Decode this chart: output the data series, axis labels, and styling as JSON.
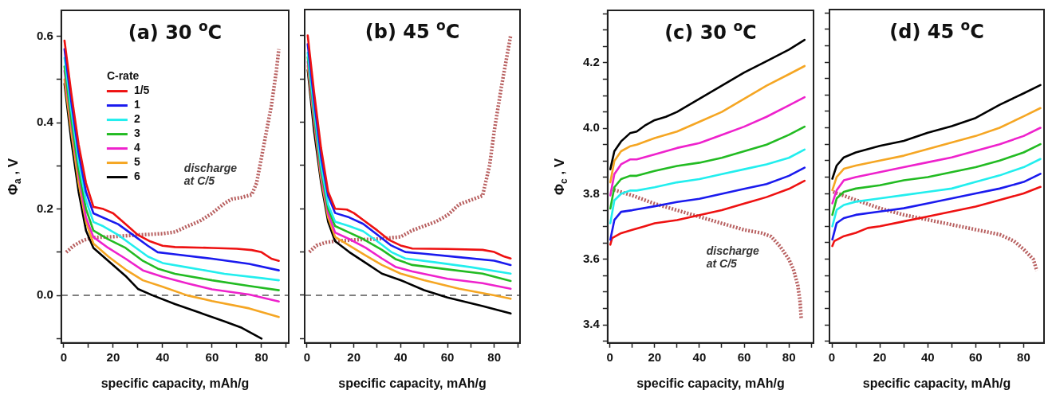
{
  "chart_data": [
    {
      "type": "line",
      "title": "(a) 30 $^{o}$C",
      "xlabel": "specific capacity, mAh/g",
      "ylabel": "Φ$_{a}$ , V",
      "legend_title": "C-rate",
      "legend": "top left",
      "xlim": [
        -1,
        91
      ],
      "xticks": [
        0,
        {
          "value": 10,
          "label": null
        },
        20,
        {
          "value": 30,
          "label": null
        },
        40,
        {
          "value": 50,
          "label": null
        },
        60,
        {
          "value": 70,
          "label": null
        },
        80,
        {
          "value": 90,
          "label": null
        }
      ],
      "ylim": [
        -0.11,
        0.66
      ],
      "yticks": [
        {
          "value": -0.1,
          "label": null
        },
        {
          "value": 0,
          "label": "0.0"
        },
        {
          "value": 0.1,
          "label": null
        },
        0.2,
        {
          "value": 0.3,
          "label": null
        },
        0.4,
        {
          "value": 0.5,
          "label": null
        },
        0.6
      ],
      "ref_lines": [
        {
          "axis": "y",
          "value": 0,
          "color": "#555555",
          "line_style": "dashed"
        }
      ],
      "annotations": [
        "discharge at C/5"
      ],
      "series": [
        {
          "name": "1/5",
          "color": "#ee1111",
          "x": [
            0.3,
            3,
            6,
            9,
            12,
            16,
            20,
            25,
            30,
            35,
            40,
            45,
            60,
            70,
            76,
            80,
            84,
            87
          ],
          "values": [
            0.59,
            0.47,
            0.35,
            0.26,
            0.205,
            0.2,
            0.19,
            0.165,
            0.14,
            0.125,
            0.115,
            0.112,
            0.11,
            0.108,
            0.105,
            0.1,
            0.085,
            0.08
          ]
        },
        {
          "name": "1",
          "color": "#1a1aee",
          "x": [
            0.3,
            3,
            6,
            9,
            12,
            16,
            22,
            28,
            34,
            38,
            45,
            60,
            75,
            87
          ],
          "values": [
            0.57,
            0.45,
            0.33,
            0.24,
            0.19,
            0.18,
            0.165,
            0.14,
            0.115,
            0.1,
            0.095,
            0.085,
            0.073,
            0.058
          ]
        },
        {
          "name": "2",
          "color": "#22eeee",
          "x": [
            0.3,
            3,
            6,
            9,
            12,
            16,
            22,
            28,
            34,
            40,
            50,
            65,
            80,
            87
          ],
          "values": [
            0.55,
            0.43,
            0.31,
            0.22,
            0.17,
            0.16,
            0.14,
            0.115,
            0.09,
            0.075,
            0.065,
            0.05,
            0.04,
            0.035
          ]
        },
        {
          "name": "3",
          "color": "#22bb22",
          "x": [
            0.3,
            3,
            6,
            9,
            12,
            18,
            25,
            32,
            38,
            45,
            60,
            75,
            87
          ],
          "values": [
            0.53,
            0.41,
            0.29,
            0.2,
            0.15,
            0.13,
            0.11,
            0.08,
            0.062,
            0.05,
            0.035,
            0.022,
            0.012
          ]
        },
        {
          "name": "4",
          "color": "#ee22cc",
          "x": [
            0.3,
            3,
            6,
            9,
            12,
            18,
            25,
            32,
            40,
            50,
            60,
            75,
            87
          ],
          "values": [
            0.52,
            0.4,
            0.28,
            0.18,
            0.135,
            0.11,
            0.085,
            0.058,
            0.043,
            0.028,
            0.014,
            0.002,
            -0.014
          ]
        },
        {
          "name": "5",
          "color": "#f5a623",
          "x": [
            0.3,
            3,
            6,
            9,
            12,
            18,
            25,
            32,
            40,
            50,
            60,
            75,
            87
          ],
          "values": [
            0.5,
            0.38,
            0.26,
            0.17,
            0.12,
            0.09,
            0.06,
            0.035,
            0.02,
            0,
            -0.013,
            -0.03,
            -0.05
          ]
        },
        {
          "name": "6",
          "color": "#000000",
          "x": [
            0.3,
            3,
            6,
            9,
            12,
            18,
            25,
            30,
            36,
            45,
            55,
            65,
            72,
            80
          ],
          "values": [
            0.49,
            0.36,
            0.24,
            0.15,
            0.11,
            0.08,
            0.045,
            0.015,
            0,
            -0.02,
            -0.04,
            -0.06,
            -0.075,
            -0.1
          ]
        },
        {
          "color": "#b86060",
          "line_style": "dotted",
          "x": [
            1,
            4,
            8,
            12,
            20,
            30,
            40,
            45,
            50,
            55,
            60,
            65,
            68,
            72,
            76,
            78,
            80,
            82,
            84,
            86,
            87
          ],
          "values": [
            0.1,
            0.115,
            0.128,
            0.134,
            0.136,
            0.14,
            0.143,
            0.147,
            0.16,
            0.172,
            0.19,
            0.213,
            0.223,
            0.227,
            0.233,
            0.26,
            0.32,
            0.38,
            0.44,
            0.52,
            0.57
          ]
        }
      ]
    },
    {
      "type": "line",
      "title": "(b) 45 $^{o}$C",
      "xlabel": "specific capacity, mAh/g",
      "tick_labels": "x",
      "xlim": [
        -1,
        91
      ],
      "xticks": [
        0,
        {
          "value": 10,
          "label": null
        },
        20,
        {
          "value": 30,
          "label": null
        },
        40,
        {
          "value": 50,
          "label": null
        },
        60,
        {
          "value": 70,
          "label": null
        },
        80,
        {
          "value": 90,
          "label": null
        }
      ],
      "ylim": [
        -0.11,
        0.66
      ],
      "yticks": [
        {
          "value": -0.1,
          "label": null
        },
        {
          "value": 0,
          "label": null
        },
        {
          "value": 0.1,
          "label": null
        },
        {
          "value": 0.2,
          "label": null
        },
        {
          "value": 0.3,
          "label": null
        },
        {
          "value": 0.4,
          "label": null
        },
        {
          "value": 0.5,
          "label": null
        },
        {
          "value": 0.6,
          "label": null
        }
      ],
      "ref_lines": [
        {
          "axis": "y",
          "value": 0,
          "color": "#555555",
          "line_style": "dashed"
        }
      ],
      "series": [
        {
          "color": "#ee1111",
          "x": [
            0.3,
            3,
            6,
            9,
            12,
            17,
            20,
            25,
            30,
            35,
            40,
            45,
            60,
            75,
            80,
            84,
            87
          ],
          "values": [
            0.6,
            0.47,
            0.34,
            0.24,
            0.2,
            0.198,
            0.19,
            0.17,
            0.15,
            0.128,
            0.115,
            0.108,
            0.107,
            0.105,
            0.1,
            0.09,
            0.085
          ]
        },
        {
          "color": "#1a1aee",
          "x": [
            0.3,
            3,
            6,
            9,
            12,
            18,
            24,
            30,
            36,
            42,
            50,
            65,
            80,
            87
          ],
          "values": [
            0.58,
            0.45,
            0.32,
            0.23,
            0.19,
            0.18,
            0.165,
            0.14,
            0.115,
            0.1,
            0.096,
            0.088,
            0.08,
            0.07
          ]
        },
        {
          "color": "#22eeee",
          "x": [
            0.3,
            3,
            6,
            9,
            12,
            18,
            24,
            30,
            36,
            42,
            55,
            70,
            87
          ],
          "values": [
            0.56,
            0.43,
            0.3,
            0.21,
            0.17,
            0.16,
            0.148,
            0.125,
            0.1,
            0.085,
            0.076,
            0.065,
            0.05
          ]
        },
        {
          "color": "#22bb22",
          "x": [
            0.3,
            3,
            6,
            9,
            12,
            18,
            24,
            32,
            38,
            45,
            60,
            75,
            87
          ],
          "values": [
            0.55,
            0.42,
            0.29,
            0.2,
            0.16,
            0.145,
            0.13,
            0.105,
            0.083,
            0.07,
            0.06,
            0.05,
            0.033
          ]
        },
        {
          "color": "#ee22cc",
          "x": [
            0.3,
            3,
            6,
            9,
            12,
            18,
            25,
            32,
            38,
            45,
            60,
            75,
            87
          ],
          "values": [
            0.54,
            0.41,
            0.28,
            0.19,
            0.145,
            0.13,
            0.11,
            0.085,
            0.065,
            0.055,
            0.038,
            0.028,
            0.015
          ]
        },
        {
          "color": "#f5a623",
          "x": [
            0.3,
            3,
            6,
            9,
            12,
            18,
            25,
            32,
            40,
            50,
            65,
            80,
            87
          ],
          "values": [
            0.53,
            0.4,
            0.27,
            0.18,
            0.135,
            0.115,
            0.092,
            0.07,
            0.05,
            0.035,
            0.015,
            0,
            -0.008
          ]
        },
        {
          "color": "#000000",
          "x": [
            0.3,
            3,
            6,
            9,
            12,
            18,
            25,
            32,
            40,
            50,
            60,
            75,
            87
          ],
          "values": [
            0.52,
            0.38,
            0.26,
            0.17,
            0.125,
            0.1,
            0.075,
            0.05,
            0.035,
            0.012,
            -0.005,
            -0.025,
            -0.042
          ]
        },
        {
          "color": "#b86060",
          "line_style": "dotted",
          "x": [
            1,
            4,
            8,
            12,
            20,
            30,
            40,
            45,
            55,
            60,
            65,
            70,
            75,
            78,
            80,
            83,
            87
          ],
          "values": [
            0.1,
            0.115,
            0.122,
            0.125,
            0.128,
            0.13,
            0.135,
            0.15,
            0.17,
            0.185,
            0.21,
            0.22,
            0.23,
            0.3,
            0.38,
            0.48,
            0.6
          ]
        }
      ]
    },
    {
      "type": "line",
      "title": "(c) 30 $^{o}$C",
      "xlabel": "specific capacity, mAh/g",
      "ylabel": "Φ$_{c}$ , V",
      "xlim": [
        -1,
        91
      ],
      "xticks": [
        0,
        {
          "value": 10,
          "label": null
        },
        20,
        {
          "value": 30,
          "label": null
        },
        40,
        {
          "value": 50,
          "label": null
        },
        60,
        {
          "value": 70,
          "label": null
        },
        80,
        {
          "value": 90,
          "label": null
        }
      ],
      "ylim": [
        3.345,
        4.36
      ],
      "yticks": [
        {
          "value": 3.35,
          "label": null
        },
        3.4,
        {
          "value": 3.45,
          "label": null
        },
        {
          "value": 3.5,
          "label": null
        },
        {
          "value": 3.55,
          "label": null
        },
        3.6,
        {
          "value": 3.65,
          "label": null
        },
        {
          "value": 3.7,
          "label": null
        },
        {
          "value": 3.75,
          "label": null
        },
        3.8,
        {
          "value": 3.85,
          "label": null
        },
        {
          "value": 3.9,
          "label": null
        },
        {
          "value": 3.95,
          "label": null
        },
        {
          "value": 4,
          "label": "4.0"
        },
        {
          "value": 4.05,
          "label": null
        },
        {
          "value": 4.1,
          "label": null
        },
        {
          "value": 4.15,
          "label": null
        },
        4.2,
        {
          "value": 4.25,
          "label": null
        },
        {
          "value": 4.3,
          "label": null
        },
        {
          "value": 4.35,
          "label": null
        }
      ],
      "annotations": [
        "discharge at C/5"
      ],
      "series": [
        {
          "color": "#000000",
          "x": [
            0.2,
            2,
            5,
            9,
            12,
            16,
            20,
            25,
            30,
            40,
            50,
            60,
            70,
            80,
            87
          ],
          "values": [
            3.875,
            3.93,
            3.96,
            3.985,
            3.99,
            4.01,
            4.025,
            4.035,
            4.05,
            4.09,
            4.13,
            4.17,
            4.205,
            4.24,
            4.27
          ]
        },
        {
          "color": "#f5a623",
          "x": [
            0.2,
            2,
            5,
            9,
            12,
            20,
            30,
            40,
            50,
            60,
            70,
            80,
            87
          ],
          "values": [
            3.835,
            3.9,
            3.93,
            3.945,
            3.95,
            3.97,
            3.99,
            4.02,
            4.05,
            4.09,
            4.13,
            4.165,
            4.19
          ]
        },
        {
          "color": "#ee22cc",
          "x": [
            0.2,
            2,
            5,
            9,
            12,
            20,
            30,
            40,
            50,
            60,
            70,
            80,
            87
          ],
          "values": [
            3.795,
            3.86,
            3.89,
            3.905,
            3.905,
            3.92,
            3.94,
            3.955,
            3.98,
            4.005,
            4.035,
            4.07,
            4.095
          ]
        },
        {
          "color": "#22bb22",
          "x": [
            0.2,
            2,
            5,
            9,
            12,
            20,
            30,
            40,
            50,
            60,
            70,
            80,
            87
          ],
          "values": [
            3.755,
            3.82,
            3.845,
            3.855,
            3.855,
            3.87,
            3.885,
            3.895,
            3.91,
            3.93,
            3.95,
            3.98,
            4.005
          ]
        },
        {
          "color": "#22eeee",
          "x": [
            0.2,
            2,
            5,
            9,
            12,
            20,
            30,
            40,
            50,
            60,
            70,
            80,
            87
          ],
          "values": [
            3.71,
            3.78,
            3.8,
            3.81,
            3.81,
            3.82,
            3.835,
            3.845,
            3.86,
            3.875,
            3.89,
            3.91,
            3.935
          ]
        },
        {
          "color": "#1a1aee",
          "x": [
            0.2,
            2,
            5,
            10,
            20,
            30,
            40,
            50,
            60,
            70,
            80,
            87
          ],
          "values": [
            3.66,
            3.72,
            3.745,
            3.75,
            3.762,
            3.775,
            3.785,
            3.8,
            3.815,
            3.83,
            3.855,
            3.88
          ]
        },
        {
          "color": "#ee1111",
          "x": [
            0.2,
            1,
            5,
            10,
            15,
            20,
            30,
            40,
            50,
            60,
            70,
            80,
            87
          ],
          "values": [
            3.645,
            3.665,
            3.68,
            3.69,
            3.7,
            3.71,
            3.72,
            3.735,
            3.75,
            3.77,
            3.79,
            3.815,
            3.84
          ]
        },
        {
          "color": "#b86060",
          "line_style": "dotted",
          "x": [
            0.5,
            10,
            20,
            30,
            40,
            50,
            60,
            68,
            72,
            76,
            80,
            82,
            84,
            85,
            85.5
          ],
          "values": [
            3.815,
            3.795,
            3.77,
            3.75,
            3.73,
            3.71,
            3.69,
            3.68,
            3.67,
            3.64,
            3.6,
            3.57,
            3.52,
            3.47,
            3.42
          ]
        }
      ]
    },
    {
      "type": "line",
      "title": "(d) 45 $^{o}$C",
      "xlabel": "specific capacity, mAh/g",
      "tick_labels": "x",
      "xlim": [
        -1,
        88.5
      ],
      "xticks": [
        0,
        {
          "value": 10,
          "label": null
        },
        20,
        {
          "value": 30,
          "label": null
        },
        40,
        {
          "value": 50,
          "label": null
        },
        60,
        {
          "value": 70,
          "label": null
        },
        80
      ],
      "ylim": [
        3.345,
        4.36
      ],
      "yticks": [
        {
          "value": 3.35,
          "label": null
        },
        {
          "value": 3.4,
          "label": null
        },
        {
          "value": 3.45,
          "label": null
        },
        {
          "value": 3.5,
          "label": null
        },
        {
          "value": 3.55,
          "label": null
        },
        {
          "value": 3.6,
          "label": null
        },
        {
          "value": 3.65,
          "label": null
        },
        {
          "value": 3.7,
          "label": null
        },
        {
          "value": 3.75,
          "label": null
        },
        {
          "value": 3.8,
          "label": null
        },
        {
          "value": 3.85,
          "label": null
        },
        {
          "value": 3.9,
          "label": null
        },
        {
          "value": 3.95,
          "label": null
        },
        {
          "value": 4,
          "label": null
        },
        {
          "value": 4.05,
          "label": null
        },
        {
          "value": 4.1,
          "label": null
        },
        {
          "value": 4.15,
          "label": null
        },
        {
          "value": 4.2,
          "label": null
        },
        {
          "value": 4.25,
          "label": null
        },
        {
          "value": 4.3,
          "label": null
        },
        {
          "value": 4.35,
          "label": null
        }
      ],
      "series": [
        {
          "color": "#000000",
          "x": [
            0.2,
            2,
            5,
            10,
            20,
            30,
            40,
            50,
            60,
            70,
            80,
            87
          ],
          "values": [
            3.845,
            3.885,
            3.91,
            3.925,
            3.945,
            3.96,
            3.985,
            4.005,
            4.03,
            4.07,
            4.105,
            4.13
          ]
        },
        {
          "color": "#f5a623",
          "x": [
            0.2,
            2,
            5,
            10,
            20,
            30,
            40,
            50,
            60,
            70,
            80,
            87
          ],
          "values": [
            3.81,
            3.85,
            3.875,
            3.885,
            3.9,
            3.915,
            3.935,
            3.955,
            3.975,
            4,
            4.035,
            4.06
          ]
        },
        {
          "color": "#ee22cc",
          "x": [
            0.2,
            2,
            5,
            10,
            20,
            30,
            40,
            50,
            60,
            70,
            80,
            87
          ],
          "values": [
            3.77,
            3.81,
            3.84,
            3.85,
            3.865,
            3.88,
            3.895,
            3.91,
            3.93,
            3.95,
            3.975,
            4
          ]
        },
        {
          "color": "#22bb22",
          "x": [
            0.2,
            2,
            5,
            10,
            20,
            30,
            40,
            50,
            60,
            70,
            80,
            87
          ],
          "values": [
            3.735,
            3.785,
            3.805,
            3.815,
            3.825,
            3.84,
            3.85,
            3.865,
            3.88,
            3.9,
            3.925,
            3.95
          ]
        },
        {
          "color": "#22eeee",
          "x": [
            0.2,
            2,
            5,
            10,
            20,
            30,
            40,
            50,
            60,
            70,
            80,
            87
          ],
          "values": [
            3.7,
            3.75,
            3.765,
            3.775,
            3.785,
            3.795,
            3.805,
            3.815,
            3.835,
            3.855,
            3.88,
            3.905
          ]
        },
        {
          "color": "#1a1aee",
          "x": [
            0.2,
            2,
            5,
            10,
            20,
            30,
            40,
            50,
            60,
            70,
            80,
            87
          ],
          "values": [
            3.66,
            3.71,
            3.725,
            3.735,
            3.745,
            3.755,
            3.77,
            3.785,
            3.8,
            3.815,
            3.835,
            3.86
          ]
        },
        {
          "color": "#ee1111",
          "x": [
            0.2,
            1,
            5,
            10,
            15,
            20,
            30,
            40,
            50,
            60,
            70,
            80,
            87
          ],
          "values": [
            3.64,
            3.655,
            3.67,
            3.68,
            3.695,
            3.7,
            3.715,
            3.73,
            3.745,
            3.76,
            3.78,
            3.8,
            3.82
          ]
        },
        {
          "color": "#b86060",
          "line_style": "dotted",
          "x": [
            0.5,
            10,
            20,
            30,
            40,
            50,
            60,
            70,
            76,
            80,
            84,
            85.5
          ],
          "values": [
            3.805,
            3.78,
            3.755,
            3.735,
            3.72,
            3.705,
            3.69,
            3.675,
            3.655,
            3.63,
            3.6,
            3.565
          ]
        }
      ]
    }
  ]
}
